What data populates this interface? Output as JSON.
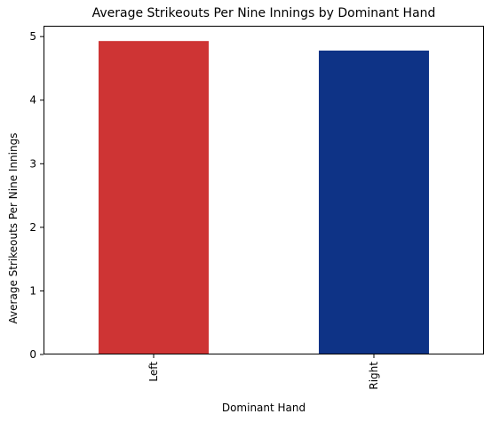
{
  "chart_data": {
    "type": "bar",
    "title": "Average Strikeouts Per Nine Innings by Dominant Hand",
    "xlabel": "Dominant Hand",
    "ylabel": "Average Strikeouts Per Nine Innings",
    "categories": [
      "Left",
      "Right"
    ],
    "values": [
      4.93,
      4.78
    ],
    "colors": [
      "#ce3434",
      "#0e3386"
    ],
    "ylim": [
      0,
      5.17
    ],
    "yticks": [
      0,
      1,
      2,
      3,
      4,
      5
    ],
    "grid": false,
    "legend": "none",
    "x_tick_rotation": "vertical"
  }
}
